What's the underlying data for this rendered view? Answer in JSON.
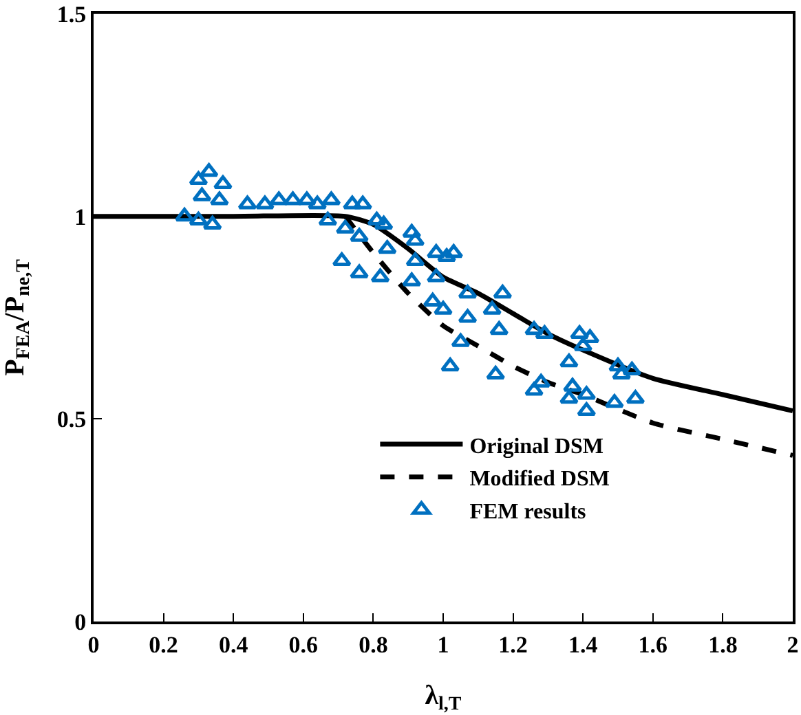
{
  "chart_data": {
    "type": "line",
    "xlabel": "λ$_{l,T}$",
    "ylabel": "P$_{FEA}$/P$_{ne,T}$",
    "xlim": [
      0,
      2
    ],
    "xticks": [
      0,
      0.2,
      0.4,
      0.6,
      0.8,
      1,
      1.2,
      1.4,
      1.6,
      1.8,
      2
    ],
    "ylim": [
      0,
      1.5
    ],
    "yticks": [
      0,
      0.5,
      1,
      1.5
    ],
    "grid": false,
    "legend": "bottom",
    "series": [
      {
        "name": "Original DSM",
        "color": "#000000",
        "line_style": "solid",
        "marker": "none",
        "x": [
          0,
          0.4,
          0.72,
          0.8,
          0.9,
          1,
          1.1,
          1.2,
          1.3,
          1.4,
          1.6,
          1.8,
          2
        ],
        "values": [
          1,
          1,
          1,
          0.98,
          0.92,
          0.85,
          0.81,
          0.76,
          0.71,
          0.67,
          0.6,
          0.56,
          0.52
        ]
      },
      {
        "name": "Modified DSM",
        "color": "#000000",
        "line_style": "dashed",
        "marker": "none",
        "x": [
          0.72,
          0.8,
          0.9,
          1,
          1.1,
          1.2,
          1.3,
          1.4,
          1.6,
          1.8,
          2
        ],
        "values": [
          1,
          0.91,
          0.81,
          0.73,
          0.68,
          0.63,
          0.59,
          0.56,
          0.49,
          0.45,
          0.41
        ]
      },
      {
        "name": "FEM results",
        "type": "scatter",
        "color": "#0070c0",
        "marker": "triangle",
        "x": [
          0.26,
          0.3,
          0.34,
          0.3,
          0.33,
          0.37,
          0.31,
          0.36,
          0.44,
          0.49,
          0.53,
          0.57,
          0.61,
          0.64,
          0.68,
          0.67,
          0.74,
          0.77,
          0.81,
          0.83,
          0.72,
          0.76,
          0.71,
          0.76,
          0.82,
          0.84,
          0.91,
          0.92,
          0.92,
          0.91,
          0.98,
          1.01,
          1.03,
          0.98,
          0.97,
          1.0,
          1.07,
          1.17,
          1.07,
          1.14,
          1.16,
          1.05,
          1.02,
          1.15,
          1.26,
          1.29,
          1.26,
          1.28,
          1.39,
          1.42,
          1.4,
          1.36,
          1.36,
          1.37,
          1.41,
          1.41,
          1.5,
          1.51,
          1.54,
          1.49,
          1.55
        ],
        "values": [
          1.0,
          0.99,
          0.98,
          1.09,
          1.11,
          1.08,
          1.05,
          1.04,
          1.03,
          1.03,
          1.04,
          1.04,
          1.04,
          1.03,
          1.04,
          0.99,
          1.03,
          1.03,
          0.99,
          0.98,
          0.97,
          0.95,
          0.89,
          0.86,
          0.85,
          0.92,
          0.96,
          0.94,
          0.89,
          0.84,
          0.91,
          0.9,
          0.91,
          0.85,
          0.79,
          0.77,
          0.81,
          0.81,
          0.75,
          0.77,
          0.72,
          0.69,
          0.63,
          0.61,
          0.72,
          0.71,
          0.57,
          0.59,
          0.71,
          0.7,
          0.68,
          0.64,
          0.55,
          0.58,
          0.56,
          0.52,
          0.63,
          0.61,
          0.62,
          0.54,
          0.55
        ]
      }
    ]
  }
}
